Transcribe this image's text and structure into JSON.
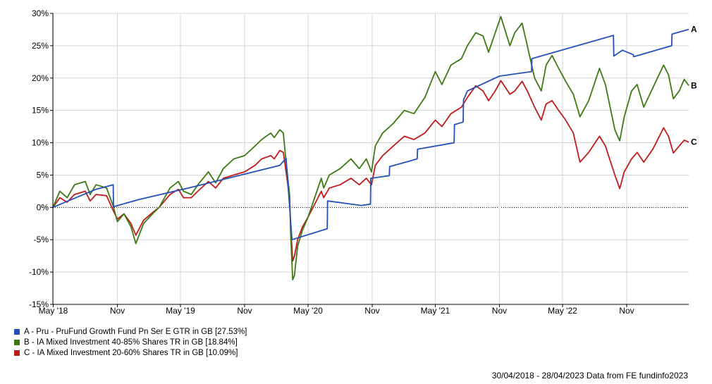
{
  "chart_data": {
    "type": "line",
    "ylim": [
      -15,
      30
    ],
    "y_ticks": [
      "30%",
      "25%",
      "20%",
      "15%",
      "10%",
      "5%",
      "0%",
      "-5%",
      "-10%",
      "-15%"
    ],
    "y_tick_values": [
      30,
      25,
      20,
      15,
      10,
      5,
      0,
      -5,
      -10,
      -15
    ],
    "xlim": [
      "2018-04-30",
      "2023-04-28"
    ],
    "x_ticks": [
      {
        "label": "May '18",
        "date": "2018-05-01"
      },
      {
        "label": "Nov",
        "date": "2018-11-01"
      },
      {
        "label": "May '19",
        "date": "2019-05-01"
      },
      {
        "label": "Nov",
        "date": "2019-11-01"
      },
      {
        "label": "May '20",
        "date": "2020-05-01"
      },
      {
        "label": "Nov",
        "date": "2020-11-01"
      },
      {
        "label": "May '21",
        "date": "2021-05-01"
      },
      {
        "label": "Nov",
        "date": "2021-11-01"
      },
      {
        "label": "May '22",
        "date": "2022-05-01"
      },
      {
        "label": "Nov",
        "date": "2022-11-01"
      }
    ],
    "grid": true,
    "zero_line": "dotted",
    "series": [
      {
        "name": "A - Pru - PruFund Growth Fund Pn Ser E GTR in GB [27.53%]",
        "end_label": "A",
        "color": "#2550b5",
        "points": [
          [
            "2018-04-30",
            0
          ],
          [
            "2018-09-01",
            2.8
          ],
          [
            "2018-10-20",
            3.5
          ],
          [
            "2018-10-21",
            0.1
          ],
          [
            "2019-01-01",
            1.2
          ],
          [
            "2019-06-01",
            3.1
          ],
          [
            "2020-02-10",
            6.5
          ],
          [
            "2020-02-28",
            7.6
          ],
          [
            "2020-03-16",
            -5.0
          ],
          [
            "2020-06-25",
            -3.3
          ],
          [
            "2020-06-26",
            1.0
          ],
          [
            "2020-10-01",
            0.3
          ],
          [
            "2020-10-27",
            0.5
          ],
          [
            "2020-10-28",
            4.5
          ],
          [
            "2020-12-20",
            4.9
          ],
          [
            "2020-12-21",
            6.3
          ],
          [
            "2021-03-10",
            7.5
          ],
          [
            "2021-03-11",
            9.0
          ],
          [
            "2021-06-24",
            10.0
          ],
          [
            "2021-06-25",
            12.8
          ],
          [
            "2021-07-20",
            13.2
          ],
          [
            "2021-07-21",
            16.6
          ],
          [
            "2021-08-01",
            18.0
          ],
          [
            "2021-11-01",
            20.3
          ],
          [
            "2022-02-01",
            21.0
          ],
          [
            "2022-02-02",
            23.0
          ],
          [
            "2022-09-24",
            26.6
          ],
          [
            "2022-09-25",
            23.4
          ],
          [
            "2022-10-20",
            24.3
          ],
          [
            "2022-11-20",
            23.6
          ],
          [
            "2022-11-21",
            23.3
          ],
          [
            "2023-03-10",
            25.0
          ],
          [
            "2023-03-11",
            26.8
          ],
          [
            "2023-04-28",
            27.53
          ]
        ]
      },
      {
        "name": "B - IA Mixed Investment 40-85% Shares TR in GB [18.84%]",
        "end_label": "B",
        "color": "#3b7a13",
        "points": [
          [
            "2018-04-30",
            0
          ],
          [
            "2018-05-20",
            2.5
          ],
          [
            "2018-06-10",
            1.5
          ],
          [
            "2018-07-01",
            3.5
          ],
          [
            "2018-08-01",
            4.0
          ],
          [
            "2018-08-15",
            2.0
          ],
          [
            "2018-09-01",
            3.5
          ],
          [
            "2018-10-01",
            3.0
          ],
          [
            "2018-10-20",
            0.2
          ],
          [
            "2018-11-01",
            -2.2
          ],
          [
            "2018-11-20",
            -1.0
          ],
          [
            "2018-12-10",
            -3.0
          ],
          [
            "2018-12-24",
            -5.6
          ],
          [
            "2019-01-15",
            -2.5
          ],
          [
            "2019-02-10",
            -1.0
          ],
          [
            "2019-03-01",
            0.0
          ],
          [
            "2019-04-01",
            3.0
          ],
          [
            "2019-04-25",
            4.0
          ],
          [
            "2019-05-10",
            2.5
          ],
          [
            "2019-06-01",
            2.0
          ],
          [
            "2019-06-20",
            3.5
          ],
          [
            "2019-07-20",
            5.5
          ],
          [
            "2019-08-10",
            3.8
          ],
          [
            "2019-09-01",
            6.0
          ],
          [
            "2019-10-01",
            7.5
          ],
          [
            "2019-11-01",
            8.0
          ],
          [
            "2019-12-01",
            9.5
          ],
          [
            "2019-12-20",
            10.5
          ],
          [
            "2020-01-15",
            11.5
          ],
          [
            "2020-01-25",
            10.8
          ],
          [
            "2020-02-10",
            12.0
          ],
          [
            "2020-02-20",
            11.5
          ],
          [
            "2020-02-28",
            7.0
          ],
          [
            "2020-03-09",
            2.0
          ],
          [
            "2020-03-12",
            -4.0
          ],
          [
            "2020-03-18",
            -11.2
          ],
          [
            "2020-03-23",
            -10.5
          ],
          [
            "2020-04-01",
            -6.0
          ],
          [
            "2020-04-15",
            -3.5
          ],
          [
            "2020-05-01",
            -1.5
          ],
          [
            "2020-06-08",
            4.5
          ],
          [
            "2020-06-15",
            3.0
          ],
          [
            "2020-07-01",
            5.0
          ],
          [
            "2020-08-01",
            6.0
          ],
          [
            "2020-09-01",
            7.5
          ],
          [
            "2020-09-25",
            6.0
          ],
          [
            "2020-10-15",
            7.5
          ],
          [
            "2020-10-30",
            5.5
          ],
          [
            "2020-11-10",
            9.5
          ],
          [
            "2020-12-01",
            11.5
          ],
          [
            "2021-01-01",
            13.0
          ],
          [
            "2021-02-01",
            15.0
          ],
          [
            "2021-03-01",
            14.5
          ],
          [
            "2021-04-01",
            17.0
          ],
          [
            "2021-05-01",
            21.0
          ],
          [
            "2021-05-20",
            19.0
          ],
          [
            "2021-06-15",
            22.0
          ],
          [
            "2021-07-15",
            23.0
          ],
          [
            "2021-08-01",
            25.0
          ],
          [
            "2021-08-25",
            27.0
          ],
          [
            "2021-09-15",
            26.5
          ],
          [
            "2021-10-01",
            24.0
          ],
          [
            "2021-10-20",
            27.0
          ],
          [
            "2021-11-05",
            29.5
          ],
          [
            "2021-12-01",
            25.0
          ],
          [
            "2021-12-15",
            27.0
          ],
          [
            "2022-01-05",
            28.5
          ],
          [
            "2022-01-20",
            25.0
          ],
          [
            "2022-02-10",
            20.0
          ],
          [
            "2022-03-01",
            18.0
          ],
          [
            "2022-03-15",
            22.0
          ],
          [
            "2022-04-01",
            23.5
          ],
          [
            "2022-04-20",
            21.5
          ],
          [
            "2022-05-10",
            19.5
          ],
          [
            "2022-06-01",
            17.5
          ],
          [
            "2022-06-20",
            14.0
          ],
          [
            "2022-07-15",
            16.5
          ],
          [
            "2022-08-15",
            21.5
          ],
          [
            "2022-09-01",
            19.0
          ],
          [
            "2022-09-28",
            12.0
          ],
          [
            "2022-10-12",
            10.3
          ],
          [
            "2022-10-25",
            14.0
          ],
          [
            "2022-11-15",
            18.0
          ],
          [
            "2022-12-01",
            19.0
          ],
          [
            "2022-12-20",
            15.5
          ],
          [
            "2023-01-15",
            18.5
          ],
          [
            "2023-02-15",
            22.0
          ],
          [
            "2023-03-01",
            20.5
          ],
          [
            "2023-03-15",
            16.8
          ],
          [
            "2023-04-01",
            18.0
          ],
          [
            "2023-04-15",
            19.8
          ],
          [
            "2023-04-28",
            18.84
          ]
        ]
      },
      {
        "name": "C - IA Mixed Investment 20-60% Shares TR in GB [10.09%]",
        "end_label": "C",
        "color": "#c01a1a",
        "points": [
          [
            "2018-04-30",
            0
          ],
          [
            "2018-05-20",
            1.5
          ],
          [
            "2018-06-10",
            0.8
          ],
          [
            "2018-07-01",
            2.0
          ],
          [
            "2018-08-01",
            2.5
          ],
          [
            "2018-08-15",
            1.0
          ],
          [
            "2018-09-01",
            2.0
          ],
          [
            "2018-10-01",
            1.8
          ],
          [
            "2018-10-20",
            -0.5
          ],
          [
            "2018-11-01",
            -1.8
          ],
          [
            "2018-11-20",
            -1.0
          ],
          [
            "2018-12-10",
            -2.5
          ],
          [
            "2018-12-24",
            -4.3
          ],
          [
            "2019-01-15",
            -2.0
          ],
          [
            "2019-02-10",
            -0.8
          ],
          [
            "2019-03-01",
            0.0
          ],
          [
            "2019-04-01",
            2.0
          ],
          [
            "2019-04-25",
            2.8
          ],
          [
            "2019-05-10",
            1.5
          ],
          [
            "2019-06-01",
            1.5
          ],
          [
            "2019-06-20",
            2.5
          ],
          [
            "2019-07-20",
            4.0
          ],
          [
            "2019-08-10",
            3.0
          ],
          [
            "2019-09-01",
            4.5
          ],
          [
            "2019-10-01",
            5.0
          ],
          [
            "2019-11-01",
            5.5
          ],
          [
            "2019-12-01",
            6.5
          ],
          [
            "2019-12-20",
            7.5
          ],
          [
            "2020-01-15",
            8.0
          ],
          [
            "2020-01-25",
            7.5
          ],
          [
            "2020-02-10",
            8.8
          ],
          [
            "2020-02-20",
            8.5
          ],
          [
            "2020-02-28",
            5.5
          ],
          [
            "2020-03-09",
            1.5
          ],
          [
            "2020-03-12",
            -3.0
          ],
          [
            "2020-03-18",
            -8.3
          ],
          [
            "2020-03-23",
            -7.5
          ],
          [
            "2020-04-01",
            -5.0
          ],
          [
            "2020-04-15",
            -3.0
          ],
          [
            "2020-05-01",
            -1.5
          ],
          [
            "2020-06-08",
            2.5
          ],
          [
            "2020-06-15",
            1.5
          ],
          [
            "2020-07-01",
            3.0
          ],
          [
            "2020-08-01",
            3.5
          ],
          [
            "2020-09-01",
            4.5
          ],
          [
            "2020-09-25",
            3.5
          ],
          [
            "2020-10-15",
            4.5
          ],
          [
            "2020-10-30",
            3.5
          ],
          [
            "2020-11-10",
            6.5
          ],
          [
            "2020-12-01",
            8.0
          ],
          [
            "2021-01-01",
            9.5
          ],
          [
            "2021-02-01",
            11.0
          ],
          [
            "2021-03-01",
            10.5
          ],
          [
            "2021-04-01",
            11.5
          ],
          [
            "2021-05-01",
            13.5
          ],
          [
            "2021-05-20",
            12.5
          ],
          [
            "2021-06-15",
            14.5
          ],
          [
            "2021-07-15",
            15.5
          ],
          [
            "2021-08-01",
            17.0
          ],
          [
            "2021-08-25",
            18.8
          ],
          [
            "2021-09-15",
            18.0
          ],
          [
            "2021-10-01",
            16.5
          ],
          [
            "2021-10-20",
            18.0
          ],
          [
            "2021-11-05",
            19.6
          ],
          [
            "2021-12-01",
            17.5
          ],
          [
            "2021-12-15",
            18.0
          ],
          [
            "2022-01-05",
            19.5
          ],
          [
            "2022-01-20",
            18.0
          ],
          [
            "2022-02-10",
            15.5
          ],
          [
            "2022-03-01",
            13.5
          ],
          [
            "2022-03-15",
            16.0
          ],
          [
            "2022-04-01",
            16.5
          ],
          [
            "2022-04-20",
            15.0
          ],
          [
            "2022-05-10",
            13.5
          ],
          [
            "2022-06-01",
            11.5
          ],
          [
            "2022-06-20",
            7.0
          ],
          [
            "2022-07-15",
            8.5
          ],
          [
            "2022-08-15",
            11.0
          ],
          [
            "2022-09-01",
            9.5
          ],
          [
            "2022-09-28",
            5.0
          ],
          [
            "2022-10-12",
            2.9
          ],
          [
            "2022-10-25",
            5.5
          ],
          [
            "2022-11-15",
            7.5
          ],
          [
            "2022-12-01",
            8.5
          ],
          [
            "2022-12-20",
            7.0
          ],
          [
            "2023-01-15",
            9.0
          ],
          [
            "2023-02-15",
            12.3
          ],
          [
            "2023-03-01",
            11.0
          ],
          [
            "2023-03-15",
            8.4
          ],
          [
            "2023-04-01",
            9.5
          ],
          [
            "2023-04-15",
            10.4
          ],
          [
            "2023-04-28",
            10.09
          ]
        ]
      }
    ]
  },
  "footer": {
    "text": "30/04/2018 - 28/04/2023 Data from FE fundinfo2023"
  }
}
